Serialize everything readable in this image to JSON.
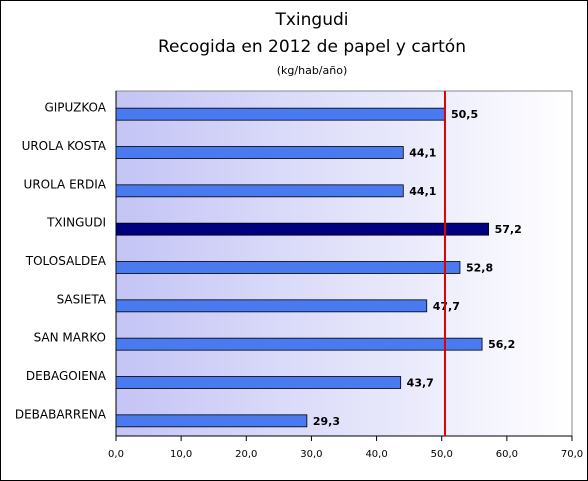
{
  "chart_data": {
    "type": "hbar",
    "title": "Txingudi",
    "subtitle": "Recogida en 2012 de papel y cartón",
    "units": "(kg/hab/año)",
    "categories": [
      "GIPUZKOA",
      "UROLA KOSTA",
      "UROLA ERDIA",
      "TXINGUDI",
      "TOLOSALDEA",
      "SASIETA",
      "SAN MARKO",
      "DEBAGOIENA",
      "DEBABARRENA"
    ],
    "values": [
      50.5,
      44.1,
      44.1,
      57.2,
      52.8,
      47.7,
      56.2,
      43.7,
      29.3
    ],
    "value_labels": [
      "50,5",
      "44,1",
      "44,1",
      "57,2",
      "52,8",
      "47,7",
      "56,2",
      "43,7",
      "29,3"
    ],
    "colors": [
      "#4a7af0",
      "#4a7af0",
      "#4a7af0",
      "#000080",
      "#4a7af0",
      "#4a7af0",
      "#4a7af0",
      "#4a7af0",
      "#4a7af0"
    ],
    "xlim": [
      0,
      70
    ],
    "xticks": [
      {
        "value": 0,
        "label": "0,0"
      },
      {
        "value": 10,
        "label": "10,0"
      },
      {
        "value": 20,
        "label": "20,0"
      },
      {
        "value": 30,
        "label": "30,0"
      },
      {
        "value": 40,
        "label": "40,0"
      },
      {
        "value": 50,
        "label": "50,0"
      },
      {
        "value": 60,
        "label": "60,0"
      },
      {
        "value": 70,
        "label": "70,0"
      }
    ],
    "reference_line": {
      "value": 50.5,
      "color": "#e00000"
    }
  }
}
